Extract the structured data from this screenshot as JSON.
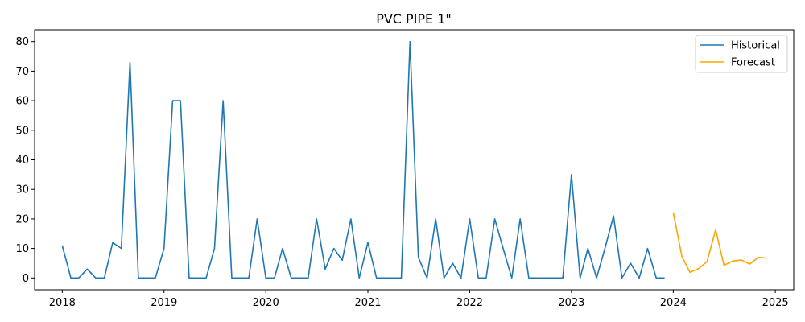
{
  "chart_data": {
    "type": "line",
    "title": "PVC PIPE 1\"",
    "xlabel": "",
    "ylabel": "",
    "x_tick_labels": [
      "2018",
      "2019",
      "2020",
      "2021",
      "2022",
      "2023",
      "2024",
      "2025"
    ],
    "y_ticks": [
      0,
      10,
      20,
      30,
      40,
      50,
      60,
      70,
      80
    ],
    "xlim": [
      "2017-09-24",
      "2025-03-08"
    ],
    "ylim": [
      -4,
      84
    ],
    "legend_position": "top-right",
    "grid": false,
    "series": [
      {
        "name": "Historical",
        "color": "#1f77b4",
        "dates": [
          "2018-01",
          "2018-02",
          "2018-03",
          "2018-04",
          "2018-05",
          "2018-06",
          "2018-07",
          "2018-08",
          "2018-09",
          "2018-10",
          "2018-11",
          "2018-12",
          "2019-01",
          "2019-02",
          "2019-03",
          "2019-04",
          "2019-05",
          "2019-06",
          "2019-07",
          "2019-08",
          "2019-09",
          "2019-10",
          "2019-11",
          "2019-12",
          "2020-01",
          "2020-02",
          "2020-03",
          "2020-04",
          "2020-05",
          "2020-06",
          "2020-07",
          "2020-08",
          "2020-09",
          "2020-10",
          "2020-11",
          "2020-12",
          "2021-01",
          "2021-02",
          "2021-03",
          "2021-04",
          "2021-05",
          "2021-06",
          "2021-07",
          "2021-08",
          "2021-09",
          "2021-10",
          "2021-11",
          "2021-12",
          "2022-01",
          "2022-02",
          "2022-03",
          "2022-04",
          "2022-05",
          "2022-06",
          "2022-07",
          "2022-08",
          "2022-09",
          "2022-10",
          "2022-11",
          "2022-12",
          "2023-01",
          "2023-02",
          "2023-03",
          "2023-04",
          "2023-05",
          "2023-06",
          "2023-07",
          "2023-08",
          "2023-09",
          "2023-10",
          "2023-11",
          "2023-12"
        ],
        "values": [
          11,
          0,
          0,
          3,
          0,
          0,
          12,
          10,
          73,
          0,
          0,
          0,
          10,
          60,
          60,
          0,
          0,
          0,
          10,
          60,
          0,
          0,
          0,
          20,
          0,
          0,
          10,
          0,
          0,
          0,
          20,
          3,
          10,
          6,
          20,
          0,
          12,
          0,
          0,
          0,
          0,
          80,
          7,
          0,
          20,
          0,
          5,
          0,
          20,
          0,
          0,
          20,
          10,
          0,
          20,
          0,
          0,
          0,
          0,
          0,
          35,
          0,
          10,
          0,
          10,
          21,
          0,
          5,
          0,
          10,
          0,
          0
        ]
      },
      {
        "name": "Forecast",
        "color": "#ffa500",
        "dates": [
          "2024-01",
          "2024-02",
          "2024-03",
          "2024-04",
          "2024-05",
          "2024-06",
          "2024-07",
          "2024-08",
          "2024-09",
          "2024-10",
          "2024-11",
          "2024-12"
        ],
        "values": [
          22.2,
          7.3,
          1.9,
          3.2,
          5.5,
          16.3,
          4.3,
          5.7,
          6.1,
          4.7,
          7.0,
          6.7
        ]
      }
    ]
  }
}
